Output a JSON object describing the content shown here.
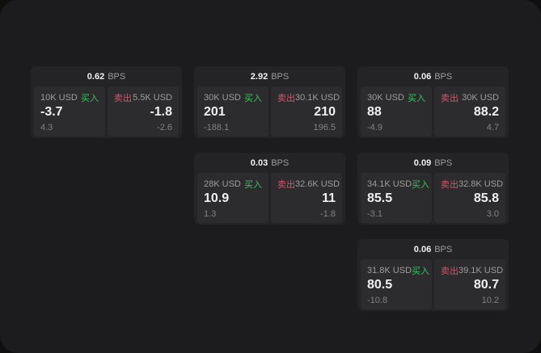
{
  "colors": {
    "page_bg": "#0f0f10",
    "surface": "#1c1c1e",
    "card_bg": "#242426",
    "panel_bg": "#2c2c2e",
    "text_primary": "#f0f0f0",
    "text_muted": "#9c9c9c",
    "text_dim": "#818181",
    "buy_green": "#3fbf63",
    "sell_red": "#d6536a"
  },
  "labels": {
    "bps": "BPS",
    "buy": "买入",
    "sell": "卖出"
  },
  "cards": [
    {
      "bps": "0.62",
      "col": 1,
      "row": 1,
      "buy": {
        "amount": "10K USD",
        "price": "-3.7",
        "delta": "4.3"
      },
      "sell": {
        "amount": "5.5K USD",
        "price": "-1.8",
        "delta": "-2.6"
      }
    },
    {
      "bps": "2.92",
      "col": 2,
      "row": 1,
      "buy": {
        "amount": "30K USD",
        "price": "201",
        "delta": "-188.1"
      },
      "sell": {
        "amount": "30.1K USD",
        "price": "210",
        "delta": "196.5"
      }
    },
    {
      "bps": "0.06",
      "col": 3,
      "row": 1,
      "buy": {
        "amount": "30K USD",
        "price": "88",
        "delta": "-4.9"
      },
      "sell": {
        "amount": "30K USD",
        "price": "88.2",
        "delta": "4.7"
      }
    },
    {
      "bps": "0.03",
      "col": 2,
      "row": 2,
      "buy": {
        "amount": "28K USD",
        "price": "10.9",
        "delta": "1.3"
      },
      "sell": {
        "amount": "32.6K USD",
        "price": "11",
        "delta": "-1.8"
      }
    },
    {
      "bps": "0.09",
      "col": 3,
      "row": 2,
      "buy": {
        "amount": "34.1K USD",
        "price": "85.5",
        "delta": "-3.1"
      },
      "sell": {
        "amount": "32.8K USD",
        "price": "85.8",
        "delta": "3.0"
      }
    },
    {
      "bps": "0.06",
      "col": 3,
      "row": 3,
      "buy": {
        "amount": "31.8K USD",
        "price": "80.5",
        "delta": "-10.8"
      },
      "sell": {
        "amount": "39.1K USD",
        "price": "80.7",
        "delta": "10.2"
      }
    }
  ]
}
